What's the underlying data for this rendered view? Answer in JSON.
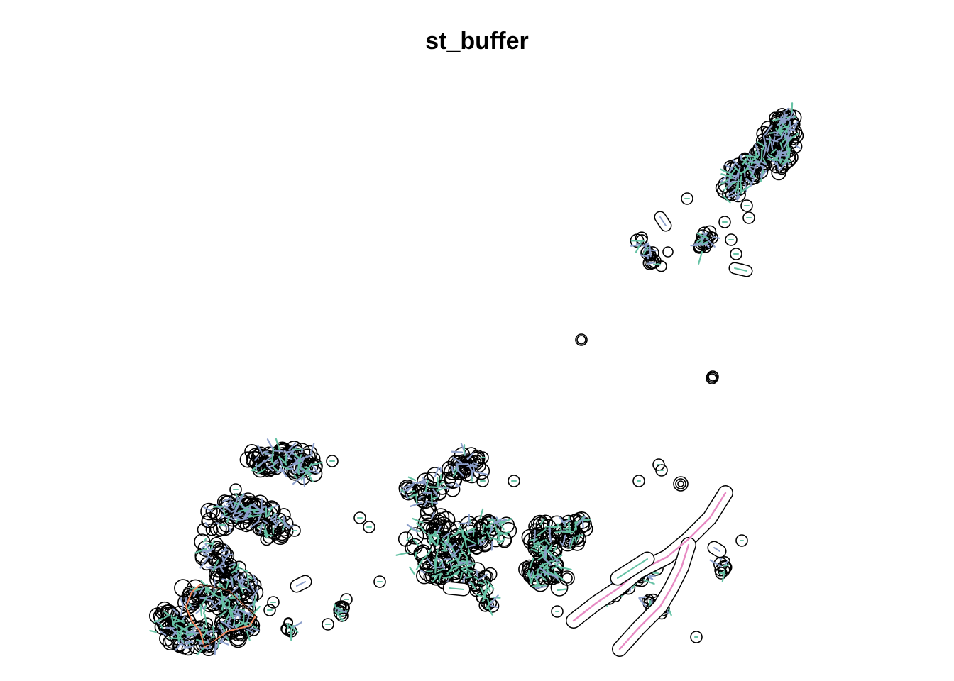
{
  "title": "st_buffer",
  "legend": null,
  "colors": {
    "buffer_outline": "#000000",
    "line_green": "#66c2a5",
    "line_blue": "#8da0cb",
    "line_orange": "#fc8d62",
    "line_pink": "#e78ac3",
    "background": "#ffffff"
  }
}
